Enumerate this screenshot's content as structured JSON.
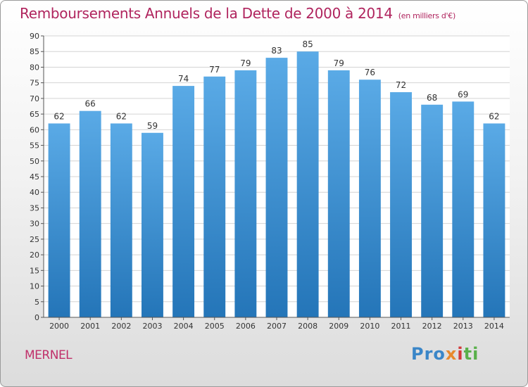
{
  "chart_data": {
    "type": "bar",
    "title": "Remboursements Annuels de la Dette de 2000 à 2014",
    "subtitle": "(en milliers d'€)",
    "categories": [
      "2000",
      "2001",
      "2002",
      "2003",
      "2004",
      "2005",
      "2006",
      "2007",
      "2008",
      "2009",
      "2010",
      "2011",
      "2012",
      "2013",
      "2014"
    ],
    "values": [
      62,
      66,
      62,
      59,
      74,
      77,
      79,
      83,
      85,
      79,
      76,
      72,
      68,
      69,
      62
    ],
    "ylim": [
      0,
      90
    ],
    "yticks": [
      0,
      5,
      10,
      15,
      20,
      25,
      30,
      35,
      40,
      45,
      50,
      55,
      60,
      65,
      70,
      75,
      80,
      85,
      90
    ],
    "grid": true,
    "bar_color_top": "#5aaae6",
    "bar_color_bottom": "#2475b8"
  },
  "footer": {
    "commune": "MERNEL",
    "brand": [
      "Pro",
      "x",
      "i",
      "ti"
    ]
  }
}
